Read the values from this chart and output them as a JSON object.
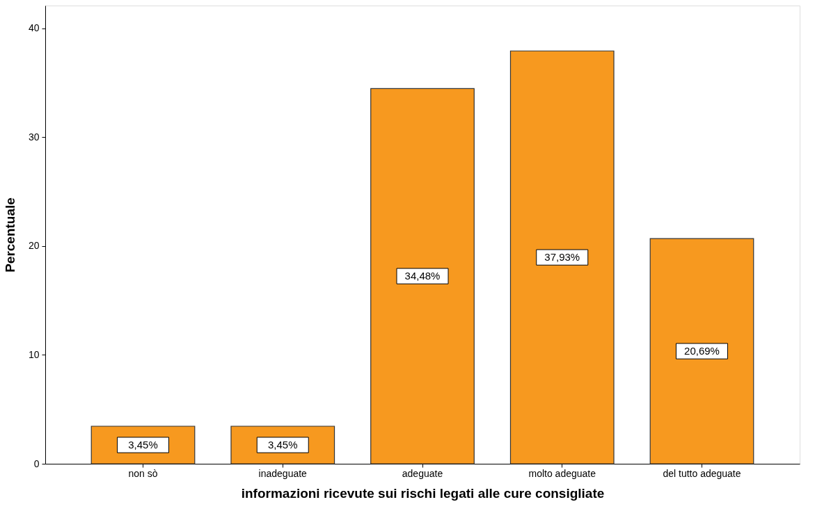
{
  "chart_data": {
    "type": "bar",
    "categories": [
      "non sò",
      "inadeguate",
      "adeguate",
      "molto adeguate",
      "del tutto adeguate"
    ],
    "values": [
      3.45,
      3.45,
      34.48,
      37.93,
      20.69
    ],
    "value_labels": [
      "3,45%",
      "3,45%",
      "34,48%",
      "37,93%",
      "20,69%"
    ],
    "color": "#f7991f",
    "xlabel": "informazioni ricevute sui rischi legati alle cure consigliate",
    "ylabel": "Percentuale",
    "ylim": [
      0,
      42.1
    ],
    "yticks": [
      0,
      10,
      20,
      30,
      40
    ]
  }
}
